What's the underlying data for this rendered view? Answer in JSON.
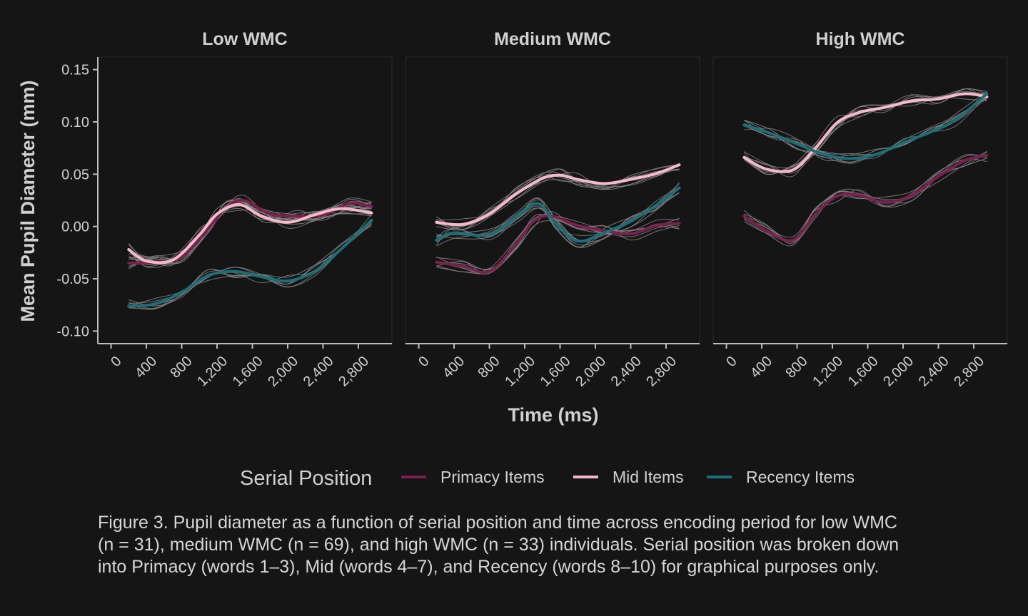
{
  "figure": {
    "caption_lines": [
      "Figure 3. Pupil diameter as a function of serial position and time across encoding period for low WMC",
      "(n = 31), medium WMC (n = 69), and high WMC (n = 33) individuals. Serial position was broken down",
      "into Primacy (words 1–3), Mid (words 4–7), and Recency (words 8–10) for graphical purposes only."
    ]
  },
  "chart_data": {
    "type": "line",
    "xlabel": "Time (ms)",
    "ylabel": "Mean Pupil Diameter (mm)",
    "xlim": [
      -150,
      3180
    ],
    "ylim": [
      -0.112,
      0.162
    ],
    "x_ticks": [
      0,
      400,
      800,
      1200,
      1600,
      2000,
      2400,
      2800
    ],
    "x_tick_labels": [
      "0",
      "400",
      "800",
      "1,200",
      "1,600",
      "2,000",
      "2,400",
      "2,800"
    ],
    "y_ticks": [
      -0.1,
      -0.05,
      0.0,
      0.05,
      0.1,
      0.15
    ],
    "y_tick_labels": [
      "-0.10",
      "-0.05",
      "0.00",
      "0.05",
      "0.10",
      "0.15"
    ],
    "grid": false,
    "legend": {
      "title": "Serial Position",
      "position": "bottom",
      "entries": [
        {
          "name": "Primacy Items",
          "color": "#7b1f4f"
        },
        {
          "name": "Mid Items",
          "color": "#f7b9c9"
        },
        {
          "name": "Recency Items",
          "color": "#1c6f79"
        }
      ]
    },
    "individual_line_color": "#8a8a8a",
    "panels": [
      {
        "title": "Low WMC",
        "series": [
          {
            "name": "Primacy Items",
            "color": "#7b1f4f",
            "x": [
              200,
              500,
              800,
              1100,
              1300,
              1500,
              1800,
              2100,
              2400,
              2700,
              2950
            ],
            "y": [
              -0.035,
              -0.034,
              -0.029,
              -0.002,
              0.018,
              0.025,
              0.012,
              0.01,
              0.011,
              0.022,
              0.019
            ]
          },
          {
            "name": "Mid Items",
            "color": "#f7b9c9",
            "x": [
              200,
              400,
              700,
              1000,
              1200,
              1450,
              1700,
              2000,
              2300,
              2600,
              2950
            ],
            "y": [
              -0.022,
              -0.033,
              -0.032,
              -0.008,
              0.012,
              0.021,
              0.01,
              0.004,
              0.011,
              0.017,
              0.013
            ]
          },
          {
            "name": "Recency Items",
            "color": "#1c6f79",
            "x": [
              200,
              500,
              800,
              1100,
              1400,
              1700,
              2000,
              2300,
              2600,
              2950
            ],
            "y": [
              -0.076,
              -0.074,
              -0.063,
              -0.047,
              -0.043,
              -0.048,
              -0.052,
              -0.043,
              -0.022,
              0.006
            ]
          }
        ]
      },
      {
        "title": "Medium WMC",
        "series": [
          {
            "name": "Primacy Items",
            "color": "#7b1f4f",
            "x": [
              200,
              500,
              800,
              1100,
              1300,
              1500,
              1800,
              2100,
              2400,
              2700,
              2950
            ],
            "y": [
              -0.034,
              -0.038,
              -0.043,
              -0.017,
              0.005,
              0.01,
              0.001,
              -0.004,
              -0.007,
              0.001,
              0.003
            ]
          },
          {
            "name": "Mid Items",
            "color": "#f7b9c9",
            "x": [
              200,
              500,
              800,
              1100,
              1400,
              1600,
              1800,
              2100,
              2400,
              2700,
              2950
            ],
            "y": [
              0.004,
              0.002,
              0.012,
              0.031,
              0.046,
              0.049,
              0.045,
              0.041,
              0.045,
              0.051,
              0.059
            ]
          },
          {
            "name": "Recency Items",
            "color": "#1c6f79",
            "x": [
              200,
              400,
              800,
              1100,
              1350,
              1550,
              1800,
              2100,
              2400,
              2700,
              2950
            ],
            "y": [
              -0.013,
              -0.006,
              -0.008,
              0.009,
              0.022,
              0.003,
              -0.014,
              -0.006,
              0.005,
              0.021,
              0.037
            ]
          }
        ]
      },
      {
        "title": "High WMC",
        "series": [
          {
            "name": "Primacy Items",
            "color": "#7b1f4f",
            "x": [
              200,
              450,
              750,
              1000,
              1250,
              1500,
              1800,
              2100,
              2400,
              2700,
              2950
            ],
            "y": [
              0.01,
              -0.004,
              -0.013,
              0.011,
              0.029,
              0.03,
              0.023,
              0.03,
              0.048,
              0.063,
              0.068
            ]
          },
          {
            "name": "Mid Items",
            "color": "#f7b9c9",
            "x": [
              200,
              450,
              750,
              1000,
              1250,
              1500,
              1800,
              2100,
              2400,
              2700,
              2950
            ],
            "y": [
              0.066,
              0.055,
              0.054,
              0.074,
              0.099,
              0.109,
              0.114,
              0.12,
              0.122,
              0.127,
              0.124
            ]
          },
          {
            "name": "Recency Items",
            "color": "#1c6f79",
            "x": [
              200,
              500,
              800,
              1100,
              1400,
              1700,
              2000,
              2300,
              2600,
              2950
            ],
            "y": [
              0.097,
              0.089,
              0.079,
              0.069,
              0.065,
              0.069,
              0.08,
              0.09,
              0.102,
              0.127
            ]
          }
        ]
      }
    ]
  }
}
